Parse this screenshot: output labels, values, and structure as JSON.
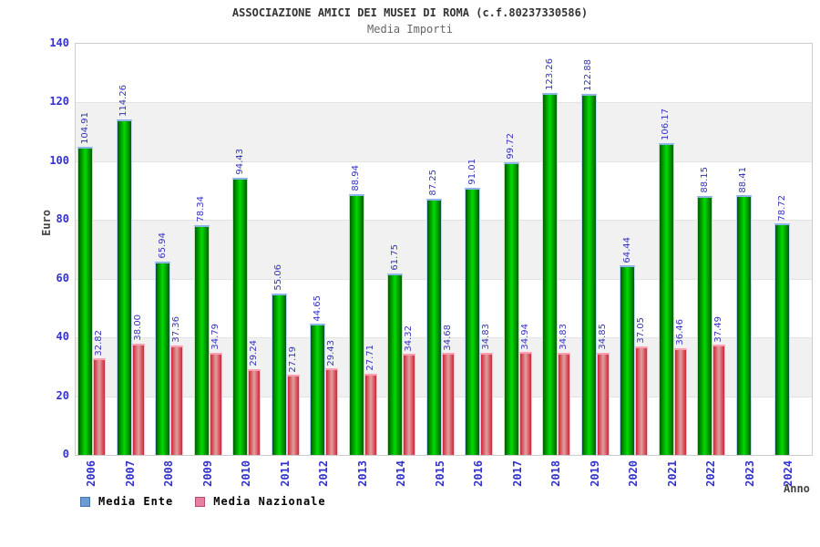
{
  "header": {
    "title": "ASSOCIAZIONE AMICI DEI MUSEI DI ROMA (c.f.80237330586)",
    "subtitle": "Media Importi"
  },
  "chart_data": {
    "type": "bar",
    "title": "ASSOCIAZIONE AMICI DEI MUSEI DI ROMA (c.f.80237330586)",
    "subtitle": "Media Importi",
    "xlabel": "Anno",
    "ylabel": "Euro",
    "ylim": [
      0,
      140
    ],
    "ytick_step": 20,
    "yticks": [
      "0",
      "20",
      "40",
      "60",
      "80",
      "100",
      "120",
      "140"
    ],
    "grid": "horizontal-bands-alternating",
    "band_color": "#f1f1f1",
    "legend_position": "bottom-left",
    "categories": [
      "2006",
      "2007",
      "2008",
      "2009",
      "2010",
      "2011",
      "2012",
      "2013",
      "2014",
      "2015",
      "2016",
      "2017",
      "2018",
      "2019",
      "2020",
      "2021",
      "2022",
      "2023",
      "2024"
    ],
    "series": [
      {
        "name": "Media Ente",
        "legend_color": "#6b9bd2",
        "legend_border": "#4477aa",
        "bar_edge_color": "#015e01",
        "bar_center_color": "#00dc00",
        "values": [
          104.91,
          114.26,
          65.94,
          78.34,
          94.43,
          55.06,
          44.65,
          88.94,
          61.75,
          87.25,
          91.01,
          99.72,
          123.26,
          122.88,
          64.44,
          106.17,
          88.15,
          88.41,
          78.72
        ]
      },
      {
        "name": "Media Nazionale",
        "legend_color": "#e87fa0",
        "legend_border": "#b05070",
        "bar_edge_color": "#d22336",
        "bar_center_color": "#dfa0a0",
        "values": [
          32.82,
          38.0,
          37.36,
          34.79,
          29.24,
          27.19,
          29.43,
          27.71,
          34.32,
          34.68,
          34.83,
          34.94,
          34.83,
          34.85,
          37.05,
          36.46,
          37.49,
          null,
          null
        ]
      }
    ]
  }
}
